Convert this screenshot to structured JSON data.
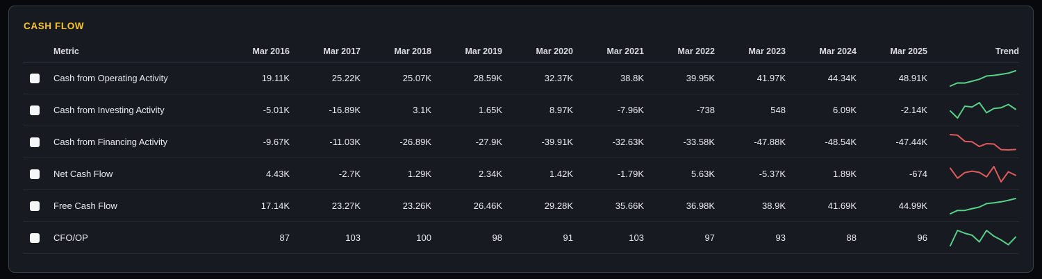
{
  "panel": {
    "title": "CASH FLOW"
  },
  "table": {
    "metric_header": "Metric",
    "trend_header": "Trend",
    "year_headers": [
      "Mar 2016",
      "Mar 2017",
      "Mar 2018",
      "Mar 2019",
      "Mar 2020",
      "Mar 2021",
      "Mar 2022",
      "Mar 2023",
      "Mar 2024",
      "Mar 2025"
    ],
    "rows": [
      {
        "metric": "Cash from Operating Activity",
        "values": [
          "19.11K",
          "25.22K",
          "25.07K",
          "28.59K",
          "32.37K",
          "38.8K",
          "39.95K",
          "41.97K",
          "44.34K",
          "48.91K"
        ],
        "spark_values": [
          19.11,
          25.22,
          25.07,
          28.59,
          32.37,
          38.8,
          39.95,
          41.97,
          44.34,
          48.91
        ],
        "trend_color": "green",
        "checked": false
      },
      {
        "metric": "Cash from Investing Activity",
        "values": [
          "-5.01K",
          "-16.89K",
          "3.1K",
          "1.65K",
          "8.97K",
          "-7.96K",
          "-738",
          "548",
          "6.09K",
          "-2.14K"
        ],
        "spark_values": [
          -5.01,
          -16.89,
          3.1,
          1.65,
          8.97,
          -7.96,
          -0.738,
          0.548,
          6.09,
          -2.14
        ],
        "trend_color": "green",
        "checked": false
      },
      {
        "metric": "Cash from Financing Activity",
        "values": [
          "-9.67K",
          "-11.03K",
          "-26.89K",
          "-27.9K",
          "-39.91K",
          "-32.63K",
          "-33.58K",
          "-47.88K",
          "-48.54K",
          "-47.44K"
        ],
        "spark_values": [
          -9.67,
          -11.03,
          -26.89,
          -27.9,
          -39.91,
          -32.63,
          -33.58,
          -47.88,
          -48.54,
          -47.44
        ],
        "trend_color": "red",
        "checked": false
      },
      {
        "metric": "Net Cash Flow",
        "values": [
          "4.43K",
          "-2.7K",
          "1.29K",
          "2.34K",
          "1.42K",
          "-1.79K",
          "5.63K",
          "-5.37K",
          "1.89K",
          "-674"
        ],
        "spark_values": [
          4.43,
          -2.7,
          1.29,
          2.34,
          1.42,
          -1.79,
          5.63,
          -5.37,
          1.89,
          -0.674
        ],
        "trend_color": "red",
        "checked": false
      },
      {
        "metric": "Free Cash Flow",
        "values": [
          "17.14K",
          "23.27K",
          "23.26K",
          "26.46K",
          "29.28K",
          "35.66K",
          "36.98K",
          "38.9K",
          "41.69K",
          "44.99K"
        ],
        "spark_values": [
          17.14,
          23.27,
          23.26,
          26.46,
          29.28,
          35.66,
          36.98,
          38.9,
          41.69,
          44.99
        ],
        "trend_color": "green",
        "checked": false
      },
      {
        "metric": "CFO/OP",
        "values": [
          "87",
          "103",
          "100",
          "98",
          "91",
          "103",
          "97",
          "93",
          "88",
          "96"
        ],
        "spark_values": [
          87,
          103,
          100,
          98,
          91,
          103,
          97,
          93,
          88,
          96
        ],
        "trend_color": "green",
        "checked": false
      }
    ]
  },
  "colors": {
    "title_accent": "#f7c52c",
    "sparkline_green": "#57d287",
    "sparkline_red": "#e05c5c"
  }
}
